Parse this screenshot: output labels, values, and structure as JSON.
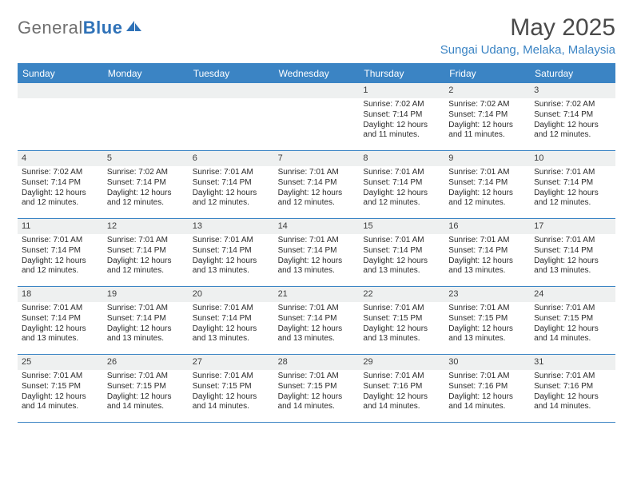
{
  "logo": {
    "text1": "General",
    "text2": "Blue"
  },
  "title": "May 2025",
  "location": "Sungai Udang, Melaka, Malaysia",
  "colors": {
    "brand_blue": "#3b84c4",
    "header_text": "#4a4a4a",
    "daynum_bg": "#eef0f0",
    "body_text": "#2b2b2b",
    "logo_gray": "#6f6f6f",
    "logo_blue": "#2f72b8",
    "background": "#ffffff"
  },
  "daysOfWeek": [
    "Sunday",
    "Monday",
    "Tuesday",
    "Wednesday",
    "Thursday",
    "Friday",
    "Saturday"
  ],
  "weeks": [
    [
      {
        "n": "",
        "lines": []
      },
      {
        "n": "",
        "lines": []
      },
      {
        "n": "",
        "lines": []
      },
      {
        "n": "",
        "lines": []
      },
      {
        "n": "1",
        "lines": [
          "Sunrise: 7:02 AM",
          "Sunset: 7:14 PM",
          "Daylight: 12 hours",
          "and 11 minutes."
        ]
      },
      {
        "n": "2",
        "lines": [
          "Sunrise: 7:02 AM",
          "Sunset: 7:14 PM",
          "Daylight: 12 hours",
          "and 11 minutes."
        ]
      },
      {
        "n": "3",
        "lines": [
          "Sunrise: 7:02 AM",
          "Sunset: 7:14 PM",
          "Daylight: 12 hours",
          "and 12 minutes."
        ]
      }
    ],
    [
      {
        "n": "4",
        "lines": [
          "Sunrise: 7:02 AM",
          "Sunset: 7:14 PM",
          "Daylight: 12 hours",
          "and 12 minutes."
        ]
      },
      {
        "n": "5",
        "lines": [
          "Sunrise: 7:02 AM",
          "Sunset: 7:14 PM",
          "Daylight: 12 hours",
          "and 12 minutes."
        ]
      },
      {
        "n": "6",
        "lines": [
          "Sunrise: 7:01 AM",
          "Sunset: 7:14 PM",
          "Daylight: 12 hours",
          "and 12 minutes."
        ]
      },
      {
        "n": "7",
        "lines": [
          "Sunrise: 7:01 AM",
          "Sunset: 7:14 PM",
          "Daylight: 12 hours",
          "and 12 minutes."
        ]
      },
      {
        "n": "8",
        "lines": [
          "Sunrise: 7:01 AM",
          "Sunset: 7:14 PM",
          "Daylight: 12 hours",
          "and 12 minutes."
        ]
      },
      {
        "n": "9",
        "lines": [
          "Sunrise: 7:01 AM",
          "Sunset: 7:14 PM",
          "Daylight: 12 hours",
          "and 12 minutes."
        ]
      },
      {
        "n": "10",
        "lines": [
          "Sunrise: 7:01 AM",
          "Sunset: 7:14 PM",
          "Daylight: 12 hours",
          "and 12 minutes."
        ]
      }
    ],
    [
      {
        "n": "11",
        "lines": [
          "Sunrise: 7:01 AM",
          "Sunset: 7:14 PM",
          "Daylight: 12 hours",
          "and 12 minutes."
        ]
      },
      {
        "n": "12",
        "lines": [
          "Sunrise: 7:01 AM",
          "Sunset: 7:14 PM",
          "Daylight: 12 hours",
          "and 12 minutes."
        ]
      },
      {
        "n": "13",
        "lines": [
          "Sunrise: 7:01 AM",
          "Sunset: 7:14 PM",
          "Daylight: 12 hours",
          "and 13 minutes."
        ]
      },
      {
        "n": "14",
        "lines": [
          "Sunrise: 7:01 AM",
          "Sunset: 7:14 PM",
          "Daylight: 12 hours",
          "and 13 minutes."
        ]
      },
      {
        "n": "15",
        "lines": [
          "Sunrise: 7:01 AM",
          "Sunset: 7:14 PM",
          "Daylight: 12 hours",
          "and 13 minutes."
        ]
      },
      {
        "n": "16",
        "lines": [
          "Sunrise: 7:01 AM",
          "Sunset: 7:14 PM",
          "Daylight: 12 hours",
          "and 13 minutes."
        ]
      },
      {
        "n": "17",
        "lines": [
          "Sunrise: 7:01 AM",
          "Sunset: 7:14 PM",
          "Daylight: 12 hours",
          "and 13 minutes."
        ]
      }
    ],
    [
      {
        "n": "18",
        "lines": [
          "Sunrise: 7:01 AM",
          "Sunset: 7:14 PM",
          "Daylight: 12 hours",
          "and 13 minutes."
        ]
      },
      {
        "n": "19",
        "lines": [
          "Sunrise: 7:01 AM",
          "Sunset: 7:14 PM",
          "Daylight: 12 hours",
          "and 13 minutes."
        ]
      },
      {
        "n": "20",
        "lines": [
          "Sunrise: 7:01 AM",
          "Sunset: 7:14 PM",
          "Daylight: 12 hours",
          "and 13 minutes."
        ]
      },
      {
        "n": "21",
        "lines": [
          "Sunrise: 7:01 AM",
          "Sunset: 7:14 PM",
          "Daylight: 12 hours",
          "and 13 minutes."
        ]
      },
      {
        "n": "22",
        "lines": [
          "Sunrise: 7:01 AM",
          "Sunset: 7:15 PM",
          "Daylight: 12 hours",
          "and 13 minutes."
        ]
      },
      {
        "n": "23",
        "lines": [
          "Sunrise: 7:01 AM",
          "Sunset: 7:15 PM",
          "Daylight: 12 hours",
          "and 13 minutes."
        ]
      },
      {
        "n": "24",
        "lines": [
          "Sunrise: 7:01 AM",
          "Sunset: 7:15 PM",
          "Daylight: 12 hours",
          "and 14 minutes."
        ]
      }
    ],
    [
      {
        "n": "25",
        "lines": [
          "Sunrise: 7:01 AM",
          "Sunset: 7:15 PM",
          "Daylight: 12 hours",
          "and 14 minutes."
        ]
      },
      {
        "n": "26",
        "lines": [
          "Sunrise: 7:01 AM",
          "Sunset: 7:15 PM",
          "Daylight: 12 hours",
          "and 14 minutes."
        ]
      },
      {
        "n": "27",
        "lines": [
          "Sunrise: 7:01 AM",
          "Sunset: 7:15 PM",
          "Daylight: 12 hours",
          "and 14 minutes."
        ]
      },
      {
        "n": "28",
        "lines": [
          "Sunrise: 7:01 AM",
          "Sunset: 7:15 PM",
          "Daylight: 12 hours",
          "and 14 minutes."
        ]
      },
      {
        "n": "29",
        "lines": [
          "Sunrise: 7:01 AM",
          "Sunset: 7:16 PM",
          "Daylight: 12 hours",
          "and 14 minutes."
        ]
      },
      {
        "n": "30",
        "lines": [
          "Sunrise: 7:01 AM",
          "Sunset: 7:16 PM",
          "Daylight: 12 hours",
          "and 14 minutes."
        ]
      },
      {
        "n": "31",
        "lines": [
          "Sunrise: 7:01 AM",
          "Sunset: 7:16 PM",
          "Daylight: 12 hours",
          "and 14 minutes."
        ]
      }
    ]
  ]
}
